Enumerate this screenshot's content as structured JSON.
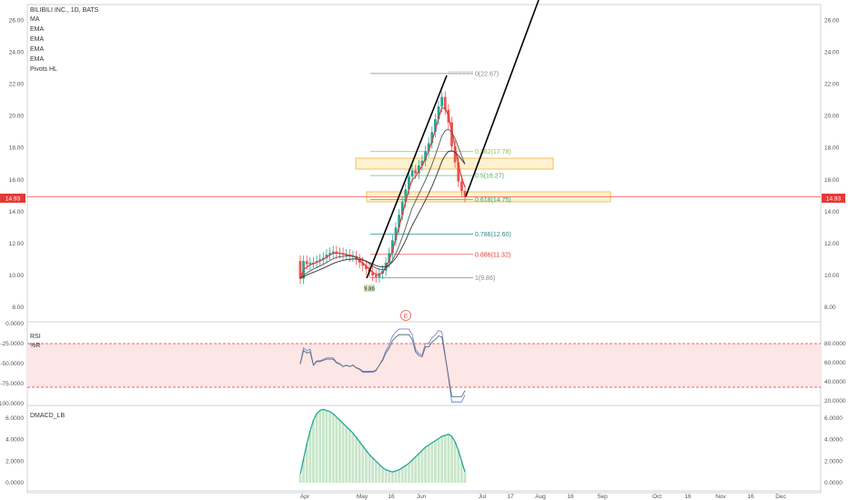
{
  "symbol": "BILIBILI INC., 1D, BATS",
  "indicators": [
    "MA",
    "EMA",
    "EMA",
    "EMA",
    "EMA",
    "Pivots HL"
  ],
  "price_now": "14.93",
  "pivot_low_label": "9.86",
  "earnings_marker": "E",
  "rsi_labels": [
    "RSI",
    "%R"
  ],
  "macd_label": "DMACD_LB",
  "colors": {
    "up": "#26a69a",
    "down": "#ef5350",
    "ema_red": "#e53935",
    "ema_dark": "#333333",
    "fib_zone": "#f7c873",
    "price_line": "#ef5350"
  },
  "chart_data": [
    {
      "type": "candlestick",
      "price_ticks": [
        "26.00",
        "24.00",
        "22.00",
        "20.00",
        "18.00",
        "16.00",
        "14.00",
        "12.00",
        "10.00",
        "8.00"
      ],
      "price_values": [
        26,
        24,
        22,
        20,
        18,
        16,
        14,
        12,
        10,
        8
      ],
      "ylim": [
        7.2,
        27.0
      ],
      "x_labels": [
        "Apr",
        "May",
        "16",
        "Jun",
        "Jul",
        "17",
        "Aug",
        "16",
        "Sep",
        "Oct",
        "16",
        "Nov",
        "16",
        "Dec"
      ],
      "fib_levels": [
        {
          "label": "0(22.67)",
          "value": 22.67,
          "color": "#888888"
        },
        {
          "label": "0.382(17.78)",
          "value": 17.78,
          "color": "#8bc34a"
        },
        {
          "label": "0.5(16.27)",
          "value": 16.27,
          "color": "#4caf50"
        },
        {
          "label": "0.618(14.75)",
          "value": 14.75,
          "color": "#26a69a"
        },
        {
          "label": "0.786(12.60)",
          "value": 12.6,
          "color": "#2e8b8b"
        },
        {
          "label": "0.886(11.32)",
          "value": 11.32,
          "color": "#e53935"
        },
        {
          "label": "1(9.86)",
          "value": 9.86,
          "color": "#888888"
        }
      ],
      "closes": [
        9.8,
        10.9,
        10.7,
        10.8,
        10.8,
        10.9,
        11.0,
        11.1,
        11.3,
        11.4,
        11.5,
        11.4,
        11.4,
        11.3,
        11.3,
        11.2,
        11.2,
        11.0,
        10.8,
        10.6,
        10.4,
        10.2,
        10.0,
        9.9,
        10.1,
        10.3,
        10.8,
        11.4,
        12.2,
        13.0,
        13.8,
        14.6,
        15.4,
        16.2,
        16.6,
        16.4,
        16.9,
        17.2,
        17.8,
        18.3,
        19.0,
        19.8,
        20.6,
        21.2,
        20.4,
        19.6,
        18.1,
        17.1,
        15.9,
        15.3,
        14.93
      ]
    },
    {
      "type": "line",
      "name": "RSI",
      "y_ticks": [
        "0.0000",
        "-25.0000",
        "-50.0000",
        "-75.0000",
        "-100.0000"
      ],
      "y_ticks_right": [
        "80.0000",
        "60.0000",
        "40.0000",
        "20.0000"
      ]
    },
    {
      "type": "area",
      "name": "DMACD_LB",
      "y_ticks": [
        "6.0000",
        "4.0000",
        "2.0000",
        "0.0000"
      ],
      "values": [
        0.8,
        2.2,
        3.6,
        4.8,
        5.8,
        6.4,
        6.7,
        6.8,
        6.7,
        6.6,
        6.4,
        6.1,
        5.8,
        5.5,
        5.2,
        4.9,
        4.6,
        4.2,
        3.8,
        3.4,
        3.0,
        2.6,
        2.3,
        2.0,
        1.7,
        1.4,
        1.2,
        1.1,
        1.0,
        1.1,
        1.2,
        1.4,
        1.6,
        1.8,
        2.1,
        2.4,
        2.7,
        3.0,
        3.3,
        3.5,
        3.7,
        3.9,
        4.1,
        4.3,
        4.4,
        4.5,
        4.3,
        3.8,
        3.0,
        2.0,
        1.0
      ]
    }
  ]
}
